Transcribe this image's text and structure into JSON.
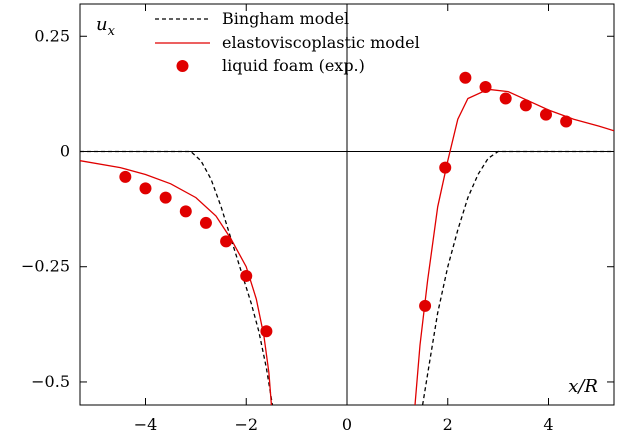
{
  "chart_data": {
    "type": "line",
    "title": "",
    "ylabel": "u_x",
    "xlabel": "x/R",
    "xlim": [
      -5.3,
      5.3
    ],
    "ylim": [
      -0.55,
      0.32
    ],
    "xticks": [
      -4,
      -2,
      0,
      2,
      4
    ],
    "yticks": [
      0.25,
      0,
      -0.25,
      -0.5
    ],
    "xtick_labels": [
      "−4",
      "−2",
      "0",
      "2",
      "4"
    ],
    "ytick_labels": [
      "0.25",
      "0",
      "−0.25",
      "−0.5"
    ],
    "legend_position": "top-left",
    "grid": false,
    "colors": {
      "bingham": "#000000",
      "evp": "#e00000",
      "foam": "#e00000"
    },
    "series": [
      {
        "name": "Bingham model",
        "style": "dashed",
        "segments": [
          [
            [
              -5.3,
              0
            ],
            [
              -3.1,
              0
            ],
            [
              -2.9,
              -0.02
            ],
            [
              -2.7,
              -0.06
            ],
            [
              -2.5,
              -0.12
            ],
            [
              -2.3,
              -0.19
            ],
            [
              -2.1,
              -0.26
            ],
            [
              -1.9,
              -0.33
            ],
            [
              -1.75,
              -0.39
            ],
            [
              -1.6,
              -0.47
            ],
            [
              -1.48,
              -0.55
            ]
          ],
          [
            [
              1.5,
              -0.55
            ],
            [
              1.65,
              -0.45
            ],
            [
              1.8,
              -0.35
            ],
            [
              2.0,
              -0.25
            ],
            [
              2.2,
              -0.17
            ],
            [
              2.4,
              -0.1
            ],
            [
              2.6,
              -0.05
            ],
            [
              2.8,
              -0.015
            ],
            [
              3.0,
              0
            ],
            [
              5.3,
              0
            ]
          ]
        ]
      },
      {
        "name": "elastoviscoplastic model",
        "style": "solid",
        "segments": [
          [
            [
              -5.3,
              -0.02
            ],
            [
              -4.5,
              -0.035
            ],
            [
              -4.0,
              -0.05
            ],
            [
              -3.5,
              -0.07
            ],
            [
              -3.0,
              -0.1
            ],
            [
              -2.6,
              -0.14
            ],
            [
              -2.3,
              -0.19
            ],
            [
              -2.0,
              -0.25
            ],
            [
              -1.8,
              -0.32
            ],
            [
              -1.65,
              -0.4
            ],
            [
              -1.55,
              -0.48
            ],
            [
              -1.5,
              -0.55
            ]
          ],
          [
            [
              1.35,
              -0.55
            ],
            [
              1.45,
              -0.42
            ],
            [
              1.6,
              -0.28
            ],
            [
              1.8,
              -0.12
            ],
            [
              2.0,
              -0.02
            ],
            [
              2.2,
              0.07
            ],
            [
              2.4,
              0.115
            ],
            [
              2.8,
              0.135
            ],
            [
              3.2,
              0.13
            ],
            [
              3.6,
              0.11
            ],
            [
              4.0,
              0.09
            ],
            [
              4.5,
              0.07
            ],
            [
              5.0,
              0.055
            ],
            [
              5.3,
              0.045
            ]
          ]
        ]
      }
    ],
    "scatter": {
      "name": "liquid foam (exp.)",
      "points": [
        [
          -4.4,
          -0.055
        ],
        [
          -4.0,
          -0.08
        ],
        [
          -3.6,
          -0.1
        ],
        [
          -3.2,
          -0.13
        ],
        [
          -2.8,
          -0.155
        ],
        [
          -2.4,
          -0.195
        ],
        [
          -2.0,
          -0.27
        ],
        [
          -1.6,
          -0.39
        ],
        [
          1.55,
          -0.335
        ],
        [
          1.95,
          -0.035
        ],
        [
          2.35,
          0.16
        ],
        [
          2.75,
          0.14
        ],
        [
          3.15,
          0.115
        ],
        [
          3.55,
          0.1
        ],
        [
          3.95,
          0.08
        ],
        [
          4.35,
          0.065
        ]
      ]
    }
  }
}
